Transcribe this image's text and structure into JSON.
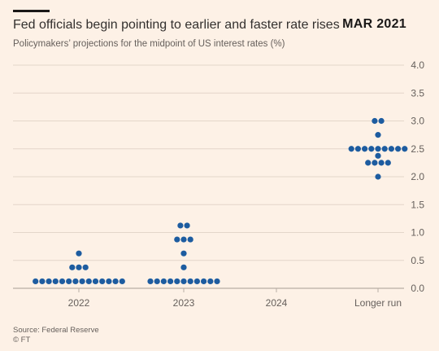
{
  "header": {
    "title": "Fed officials begin pointing to earlier and faster rate rises",
    "date_badge": "MAR 2021",
    "subtitle": "Policymakers’ projections for the midpoint of US interest rates (%)"
  },
  "footer": {
    "source": "Source: Federal Reserve",
    "credit": "© FT"
  },
  "colors": {
    "dot": "#1d5ca0",
    "grid": "#e4d6ca",
    "background": "#fdf1e6"
  },
  "chart_data": {
    "type": "scatter",
    "subtype": "dot-plot",
    "categories": [
      "2022",
      "2023",
      "2024",
      "Longer run"
    ],
    "ylim": [
      0,
      4.0
    ],
    "yticks": [
      "0.0",
      "0.5",
      "1.0",
      "1.5",
      "2.0",
      "2.5",
      "3.0",
      "3.5",
      "4.0"
    ],
    "y_axis_side": "right",
    "grid": true,
    "dots": [
      {
        "category": "2022",
        "value": 0.625,
        "count": 1
      },
      {
        "category": "2022",
        "value": 0.375,
        "count": 3
      },
      {
        "category": "2022",
        "value": 0.125,
        "count": 14
      },
      {
        "category": "2023",
        "value": 1.125,
        "count": 2
      },
      {
        "category": "2023",
        "value": 0.875,
        "count": 3
      },
      {
        "category": "2023",
        "value": 0.625,
        "count": 1
      },
      {
        "category": "2023",
        "value": 0.375,
        "count": 1
      },
      {
        "category": "2023",
        "value": 0.125,
        "count": 11
      },
      {
        "category": "Longer run",
        "value": 3.0,
        "count": 2
      },
      {
        "category": "Longer run",
        "value": 2.75,
        "count": 1
      },
      {
        "category": "Longer run",
        "value": 2.5,
        "count": 9
      },
      {
        "category": "Longer run",
        "value": 2.375,
        "count": 1
      },
      {
        "category": "Longer run",
        "value": 2.25,
        "count": 4
      },
      {
        "category": "Longer run",
        "value": 2.0,
        "count": 1
      }
    ]
  }
}
